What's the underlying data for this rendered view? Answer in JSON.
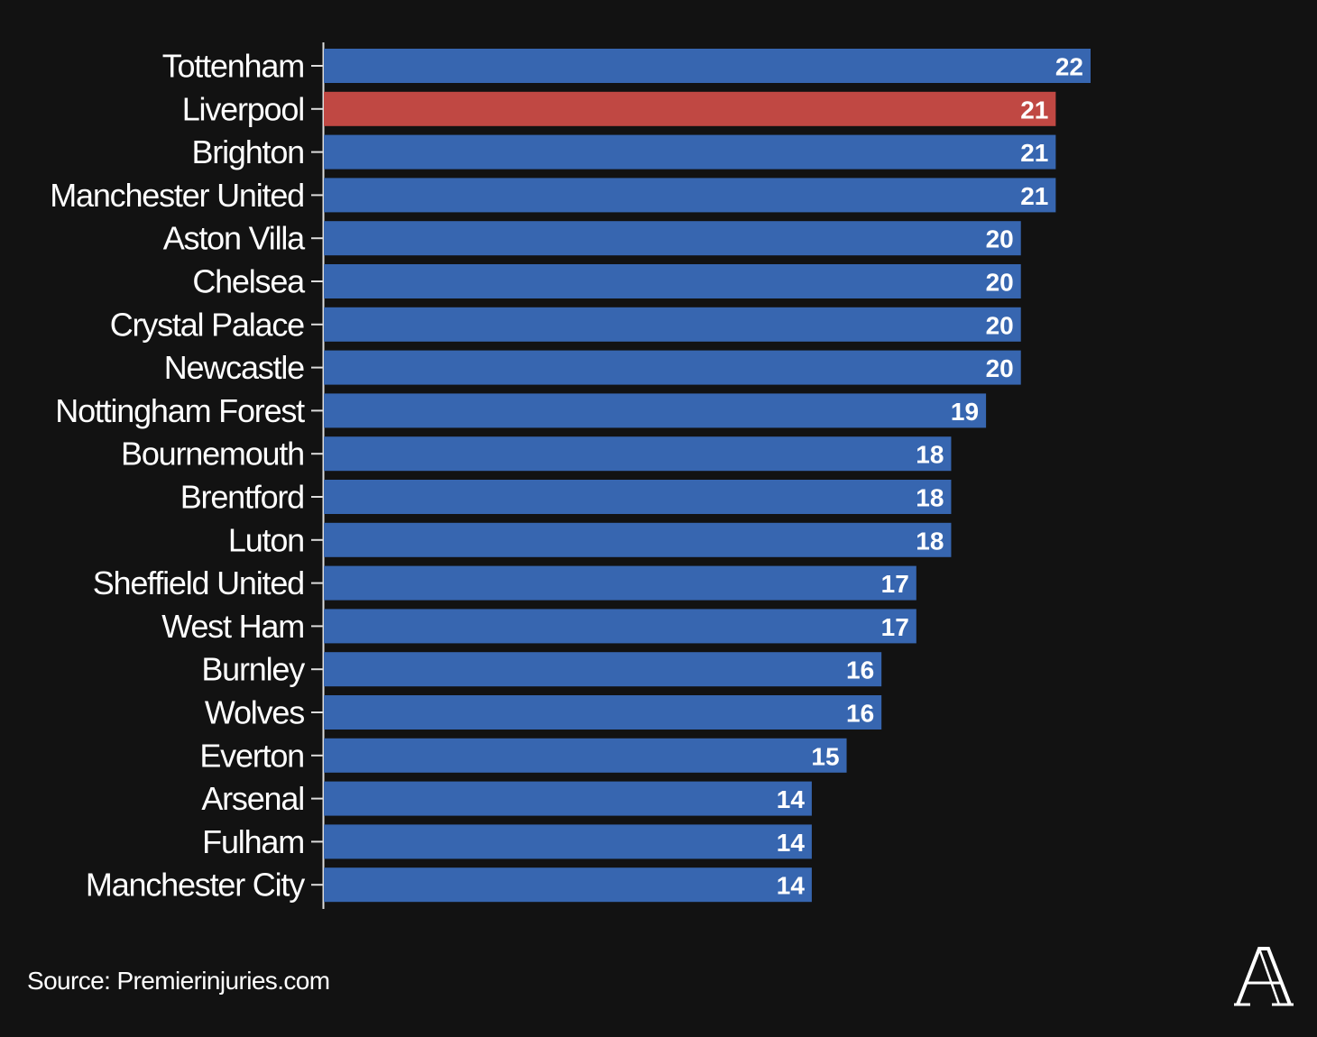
{
  "chart_data": {
    "type": "bar",
    "orientation": "horizontal",
    "categories": [
      "Tottenham",
      "Liverpool",
      "Brighton",
      "Manchester United",
      "Aston Villa",
      "Chelsea",
      "Crystal Palace",
      "Newcastle",
      "Nottingham Forest",
      "Bournemouth",
      "Brentford",
      "Luton",
      "Sheffield United",
      "West Ham",
      "Burnley",
      "Wolves",
      "Everton",
      "Arsenal",
      "Fulham",
      "Manchester City"
    ],
    "values": [
      22,
      21,
      21,
      21,
      20,
      20,
      20,
      20,
      19,
      18,
      18,
      18,
      17,
      17,
      16,
      16,
      15,
      14,
      14,
      14
    ],
    "highlight": "Liverpool",
    "colors": {
      "default_bar": "#3766b0",
      "highlight_bar": "#c04843",
      "background": "#121212",
      "text": "#ffffff",
      "axis": "#dddddd"
    },
    "title": "",
    "xlabel": "",
    "ylabel": "",
    "grid": false,
    "legend": "none",
    "value_labels": "inside-end"
  },
  "footer": {
    "source": "Source: Premierinjuries.com",
    "logo_icon": "the-athletic-logo-icon"
  }
}
